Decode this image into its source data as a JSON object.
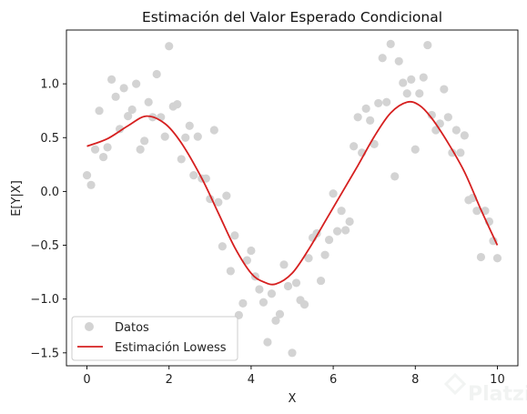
{
  "chart_data": {
    "type": "scatter",
    "title": "Estimación del Valor Esperado Condicional",
    "xlabel": "X",
    "ylabel": "E[Y|X]",
    "xlim": [
      -0.5,
      10.5
    ],
    "ylim": [
      -1.62,
      1.5
    ],
    "xticks": [
      0,
      2,
      4,
      6,
      8,
      10
    ],
    "yticks": [
      -1.5,
      -1.0,
      -0.5,
      0.0,
      0.5,
      1.0
    ],
    "xtick_labels": [
      "0",
      "2",
      "4",
      "6",
      "8",
      "10"
    ],
    "ytick_labels": [
      "−1.5",
      "−1.0",
      "−0.5",
      "0.0",
      "0.5",
      "1.0"
    ],
    "grid": false,
    "legend_position": "lower-left",
    "series": [
      {
        "name": "Datos",
        "kind": "scatter",
        "color": "#d3d3d3",
        "x": [
          0.0,
          0.1,
          0.2,
          0.3,
          0.4,
          0.5,
          0.6,
          0.7,
          0.8,
          0.9,
          1.0,
          1.1,
          1.2,
          1.3,
          1.4,
          1.5,
          1.6,
          1.7,
          1.8,
          1.9,
          2.0,
          2.1,
          2.2,
          2.3,
          2.4,
          2.5,
          2.6,
          2.7,
          2.8,
          2.9,
          3.0,
          3.1,
          3.2,
          3.3,
          3.4,
          3.5,
          3.6,
          3.7,
          3.8,
          3.9,
          4.0,
          4.1,
          4.2,
          4.3,
          4.4,
          4.5,
          4.6,
          4.7,
          4.8,
          4.9,
          5.0,
          5.1,
          5.2,
          5.3,
          5.4,
          5.5,
          5.6,
          5.7,
          5.8,
          5.9,
          6.0,
          6.1,
          6.2,
          6.3,
          6.4,
          6.5,
          6.6,
          6.7,
          6.8,
          6.9,
          7.0,
          7.1,
          7.2,
          7.3,
          7.4,
          7.5,
          7.6,
          7.7,
          7.8,
          7.9,
          8.0,
          8.1,
          8.2,
          8.3,
          8.4,
          8.5,
          8.6,
          8.7,
          8.8,
          8.9,
          9.0,
          9.1,
          9.2,
          9.3,
          9.4,
          9.5,
          9.6,
          9.7,
          9.8,
          9.9,
          10.0
        ],
        "y": [
          0.15,
          0.06,
          0.39,
          0.75,
          0.32,
          0.41,
          1.04,
          0.88,
          0.58,
          0.96,
          0.7,
          0.76,
          1.0,
          0.39,
          0.47,
          0.83,
          0.69,
          1.09,
          0.69,
          0.51,
          1.35,
          0.79,
          0.81,
          0.3,
          0.5,
          0.61,
          0.15,
          0.51,
          0.12,
          0.12,
          -0.07,
          0.57,
          -0.1,
          -0.51,
          -0.04,
          -0.74,
          -0.41,
          -1.15,
          -1.04,
          -0.64,
          -0.55,
          -0.79,
          -0.91,
          -1.03,
          -1.4,
          -0.95,
          -1.2,
          -1.14,
          -0.68,
          -0.88,
          -1.5,
          -0.85,
          -1.01,
          -1.05,
          -0.62,
          -0.43,
          -0.39,
          -0.83,
          -0.59,
          -0.45,
          -0.02,
          -0.37,
          -0.18,
          -0.36,
          -0.28,
          0.42,
          0.69,
          0.36,
          0.77,
          0.66,
          0.44,
          0.82,
          1.24,
          0.83,
          1.37,
          0.14,
          1.21,
          1.01,
          0.91,
          1.04,
          0.39,
          0.91,
          1.06,
          1.36,
          0.71,
          0.57,
          0.63,
          0.95,
          0.69,
          0.36,
          0.57,
          0.36,
          0.52,
          -0.08,
          -0.06,
          -0.18,
          -0.61,
          -0.18,
          -0.28,
          -0.46,
          -0.62
        ]
      },
      {
        "name": "Estimación Lowess",
        "kind": "line",
        "color": "#d62020",
        "x": [
          0.0,
          0.5,
          1.0,
          1.45,
          1.9,
          2.3,
          2.8,
          3.2,
          3.6,
          4.0,
          4.3,
          4.6,
          5.0,
          5.4,
          5.8,
          6.2,
          6.6,
          7.0,
          7.4,
          7.8,
          8.1,
          8.4,
          8.8,
          9.2,
          9.6,
          10.0
        ],
        "y": [
          0.42,
          0.49,
          0.61,
          0.7,
          0.63,
          0.45,
          0.12,
          -0.2,
          -0.52,
          -0.76,
          -0.84,
          -0.86,
          -0.76,
          -0.54,
          -0.28,
          -0.02,
          0.24,
          0.51,
          0.73,
          0.83,
          0.8,
          0.68,
          0.45,
          0.18,
          -0.17,
          -0.5
        ]
      }
    ],
    "watermark": "Platzi"
  }
}
